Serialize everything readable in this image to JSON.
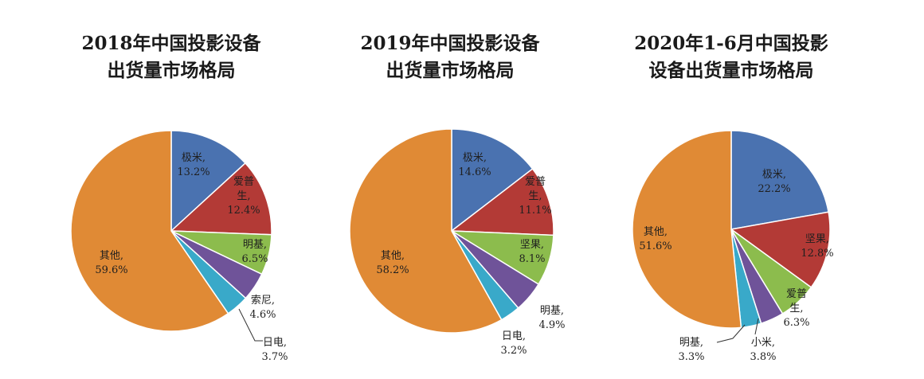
{
  "chart_data": [
    {
      "type": "pie",
      "title_lines": [
        "2018年中国投影设备",
        "出货量市场格局"
      ],
      "slices": [
        {
          "label": [
            "极米,"
          ],
          "value_text": "13.2%",
          "value": 13.2,
          "color": "#4a72b0"
        },
        {
          "label": [
            "爱普",
            "生,"
          ],
          "value_text": "12.4%",
          "value": 12.4,
          "color": "#b33a36"
        },
        {
          "label": [
            "明基,"
          ],
          "value_text": "6.5%",
          "value": 6.5,
          "color": "#8cbc4d"
        },
        {
          "label": [
            "索尼,"
          ],
          "value_text": "4.6%",
          "value": 4.6,
          "color": "#6f5399"
        },
        {
          "label": [
            "日电,"
          ],
          "value_text": "3.7%",
          "value": 3.7,
          "color": "#39a9c9"
        },
        {
          "label": [
            "其他,"
          ],
          "value_text": "59.6%",
          "value": 59.6,
          "color": "#e08a35"
        }
      ]
    },
    {
      "type": "pie",
      "title_lines": [
        "2019年中国投影设备",
        "出货量市场格局"
      ],
      "slices": [
        {
          "label": [
            "极米,"
          ],
          "value_text": "14.6%",
          "value": 14.6,
          "color": "#4a72b0"
        },
        {
          "label": [
            "爱普",
            "生,"
          ],
          "value_text": "11.1%",
          "value": 11.1,
          "color": "#b33a36"
        },
        {
          "label": [
            "坚果,"
          ],
          "value_text": "8.1%",
          "value": 8.1,
          "color": "#8cbc4d"
        },
        {
          "label": [
            "明基,"
          ],
          "value_text": "4.9%",
          "value": 4.9,
          "color": "#6f5399"
        },
        {
          "label": [
            "日电,"
          ],
          "value_text": "3.2%",
          "value": 3.2,
          "color": "#39a9c9"
        },
        {
          "label": [
            "其他,"
          ],
          "value_text": "58.2%",
          "value": 58.2,
          "color": "#e08a35"
        }
      ]
    },
    {
      "type": "pie",
      "title_lines": [
        "2020年1-6月中国投影",
        "设备出货量市场格局"
      ],
      "slices": [
        {
          "label": [
            "极米,"
          ],
          "value_text": "22.2%",
          "value": 22.2,
          "color": "#4a72b0"
        },
        {
          "label": [
            "坚果,"
          ],
          "value_text": "12.8%",
          "value": 12.8,
          "color": "#b33a36"
        },
        {
          "label": [
            "爱普",
            "生,"
          ],
          "value_text": "6.3%",
          "value": 6.3,
          "color": "#8cbc4d"
        },
        {
          "label": [
            "小米,"
          ],
          "value_text": "3.8%",
          "value": 3.8,
          "color": "#6f5399"
        },
        {
          "label": [
            "明基,"
          ],
          "value_text": "3.3%",
          "value": 3.3,
          "color": "#39a9c9"
        },
        {
          "label": [
            "其他,"
          ],
          "value_text": "51.6%",
          "value": 51.6,
          "color": "#e08a35"
        }
      ]
    }
  ]
}
